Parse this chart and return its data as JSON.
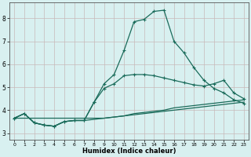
{
  "xlabel": "Humidex (Indice chaleur)",
  "bg_color": "#d8f0f0",
  "grid_color": "#c8b8b8",
  "line_color": "#1a6b5a",
  "xlim": [
    -0.5,
    23.5
  ],
  "ylim": [
    2.7,
    8.7
  ],
  "xticks": [
    0,
    1,
    2,
    3,
    4,
    5,
    6,
    7,
    8,
    9,
    10,
    11,
    12,
    13,
    14,
    15,
    16,
    17,
    18,
    19,
    20,
    21,
    22,
    23
  ],
  "yticks": [
    3,
    4,
    5,
    6,
    7,
    8
  ],
  "line1_x": [
    0,
    1,
    2,
    3,
    4,
    5,
    6,
    7,
    8,
    9,
    10,
    11,
    12,
    13,
    14,
    15,
    16,
    17,
    18,
    19,
    20,
    21,
    22,
    23
  ],
  "line1_y": [
    3.65,
    3.85,
    3.45,
    3.35,
    3.3,
    3.5,
    3.55,
    3.55,
    4.35,
    5.15,
    5.55,
    6.6,
    7.85,
    7.95,
    8.3,
    8.35,
    7.0,
    6.5,
    5.85,
    5.3,
    4.95,
    4.75,
    4.45,
    4.3
  ],
  "line2_x": [
    0,
    1,
    2,
    3,
    4,
    5,
    6,
    7,
    8,
    9,
    10,
    11,
    12,
    13,
    14,
    15,
    16,
    17,
    18,
    19,
    20,
    21,
    22,
    23
  ],
  "line2_y": [
    3.65,
    3.85,
    3.45,
    3.35,
    3.3,
    3.5,
    3.55,
    3.55,
    4.35,
    4.95,
    5.15,
    5.5,
    5.55,
    5.55,
    5.5,
    5.4,
    5.3,
    5.2,
    5.1,
    5.05,
    5.15,
    5.3,
    4.75,
    4.5
  ],
  "line3_x": [
    0,
    1,
    2,
    3,
    4,
    5,
    6,
    7,
    8,
    9,
    10,
    11,
    12,
    13,
    14,
    15,
    16,
    17,
    18,
    19,
    20,
    21,
    22,
    23
  ],
  "line3_y": [
    3.65,
    3.85,
    3.45,
    3.35,
    3.3,
    3.5,
    3.55,
    3.55,
    3.6,
    3.65,
    3.7,
    3.75,
    3.85,
    3.9,
    3.95,
    4.0,
    4.1,
    4.15,
    4.2,
    4.25,
    4.3,
    4.35,
    4.4,
    4.45
  ],
  "line4_x": [
    0,
    1,
    2,
    3,
    4,
    5,
    6,
    7,
    8,
    9,
    10,
    11,
    12,
    13,
    14,
    15,
    16,
    17,
    18,
    19,
    20,
    21,
    22,
    23
  ],
  "line4_y": [
    3.65,
    3.65,
    3.65,
    3.65,
    3.65,
    3.65,
    3.65,
    3.65,
    3.65,
    3.65,
    3.7,
    3.75,
    3.8,
    3.85,
    3.9,
    3.95,
    4.0,
    4.05,
    4.1,
    4.15,
    4.2,
    4.25,
    4.3,
    4.35
  ]
}
